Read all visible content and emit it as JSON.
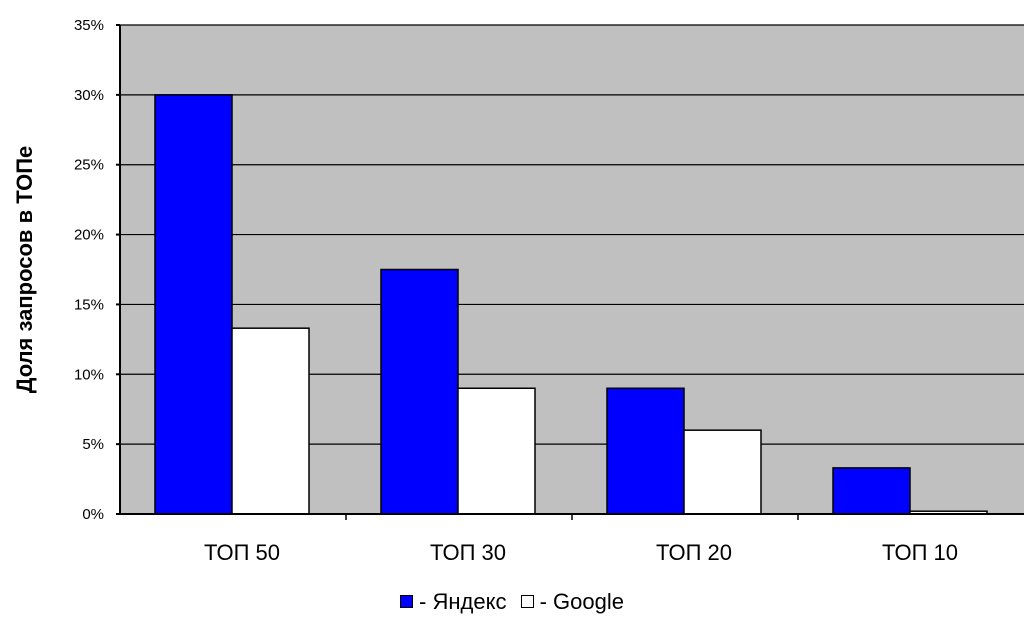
{
  "chart_data": {
    "type": "bar",
    "categories": [
      "ТОП 50",
      "ТОП 30",
      "ТОП 20",
      "ТОП 10"
    ],
    "series": [
      {
        "name": "Яндекс",
        "values": [
          30,
          17.5,
          9,
          3.3
        ]
      },
      {
        "name": "Google",
        "values": [
          13.3,
          9,
          6,
          0.2
        ]
      }
    ],
    "ylabel": "Доля запросов в ТОПе",
    "xlabel": "",
    "ylim": [
      0,
      35
    ],
    "yticks": [
      "0%",
      "5%",
      "10%",
      "15%",
      "20%",
      "25%",
      "30%",
      "35%"
    ],
    "grid": true,
    "legend_position": "bottom",
    "colors": {
      "yandex": "#0000ff",
      "google": "#ffffff",
      "plot_bg": "#c0c0c0"
    }
  },
  "legend": {
    "yandex_label": "- Яндекс",
    "google_label": "- Google"
  }
}
